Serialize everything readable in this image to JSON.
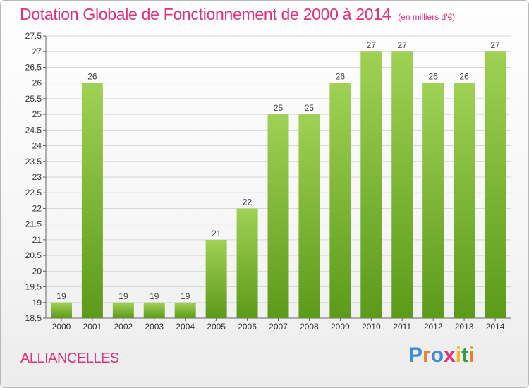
{
  "title": "Dotation Globale de Fonctionnement de 2000 à 2014",
  "unit": "(en milliers d'€)",
  "commune": "ALLIANCELLES",
  "logo": {
    "letters": [
      "P",
      "r",
      "o",
      "x",
      "i",
      "t",
      "i"
    ],
    "colors": [
      "#3a8fd6",
      "#e8812a",
      "#3a8fd6",
      "#e0317a",
      "#f2b623",
      "#2f9f4c",
      "#e8812a"
    ]
  },
  "colors": {
    "bar_top": "#9fd155",
    "bar_bottom": "#5c9a1a",
    "title": "#e0317a",
    "grid": "#d8d8d8"
  },
  "chart_data": {
    "type": "bar",
    "title": "Dotation Globale de Fonctionnement de 2000 à 2014",
    "ylabel": "",
    "xlabel": "",
    "categories": [
      "2000",
      "2001",
      "2002",
      "2003",
      "2004",
      "2005",
      "2006",
      "2007",
      "2008",
      "2009",
      "2010",
      "2011",
      "2012",
      "2013",
      "2014"
    ],
    "values": [
      19,
      26,
      19,
      19,
      19,
      21,
      22,
      25,
      25,
      26,
      27,
      27,
      26,
      26,
      27
    ],
    "data_labels": [
      "19",
      "26",
      "19",
      "19",
      "19",
      "21",
      "22",
      "25",
      "25",
      "26",
      "27",
      "27",
      "26",
      "26",
      "27"
    ],
    "ylim": [
      18.5,
      27.5
    ],
    "yticks": [
      18.5,
      19,
      19.5,
      20,
      20.5,
      21,
      21.5,
      22,
      22.5,
      23,
      23.5,
      24,
      24.5,
      25,
      25.5,
      26,
      26.5,
      27,
      27.5
    ],
    "ytick_labels": [
      "18.5",
      "19",
      "19.5",
      "20",
      "20.5",
      "21",
      "21.5",
      "22",
      "22.5",
      "23",
      "23.5",
      "24",
      "24.5",
      "25",
      "25.5",
      "26",
      "26.5",
      "27",
      "27.5"
    ],
    "grid": true
  }
}
